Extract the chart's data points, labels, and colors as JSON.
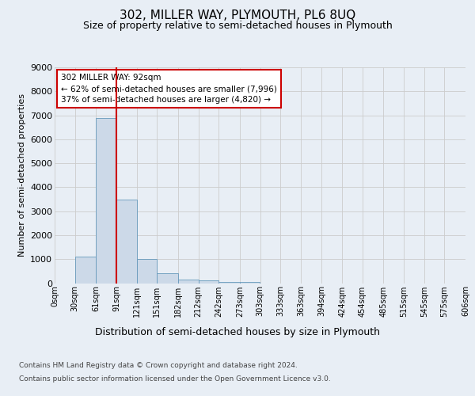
{
  "main_title": "302, MILLER WAY, PLYMOUTH, PL6 8UQ",
  "subtitle": "Size of property relative to semi-detached houses in Plymouth",
  "xlabel": "Distribution of semi-detached houses by size in Plymouth",
  "ylabel": "Number of semi-detached properties",
  "footer_line1": "Contains HM Land Registry data © Crown copyright and database right 2024.",
  "footer_line2": "Contains public sector information licensed under the Open Government Licence v3.0.",
  "annotation_line1": "302 MILLER WAY: 92sqm",
  "annotation_line2": "← 62% of semi-detached houses are smaller (7,996)",
  "annotation_line3": "37% of semi-detached houses are larger (4,820) →",
  "bar_left_edges": [
    0,
    30,
    61,
    91,
    121,
    151,
    182,
    212,
    242,
    273,
    303,
    333,
    363,
    394,
    424,
    454,
    485,
    515,
    545,
    575
  ],
  "bar_heights": [
    0,
    1100,
    6900,
    3500,
    1000,
    400,
    150,
    100,
    60,
    50,
    0,
    0,
    0,
    0,
    0,
    0,
    0,
    0,
    0,
    0
  ],
  "bar_widths": [
    30,
    31,
    30,
    30,
    30,
    31,
    30,
    30,
    31,
    30,
    30,
    30,
    31,
    30,
    30,
    31,
    30,
    30,
    30,
    31
  ],
  "bar_color": "#ccd9e8",
  "bar_edge_color": "#6699bb",
  "vline_color": "#cc0000",
  "vline_x": 91,
  "ylim": [
    0,
    9000
  ],
  "yticks": [
    0,
    1000,
    2000,
    3000,
    4000,
    5000,
    6000,
    7000,
    8000,
    9000
  ],
  "xtick_positions": [
    0,
    30,
    61,
    91,
    121,
    151,
    182,
    212,
    242,
    273,
    303,
    333,
    363,
    394,
    424,
    454,
    485,
    515,
    545,
    575,
    606
  ],
  "xtick_labels": [
    "0sqm",
    "30sqm",
    "61sqm",
    "91sqm",
    "121sqm",
    "151sqm",
    "182sqm",
    "212sqm",
    "242sqm",
    "273sqm",
    "303sqm",
    "333sqm",
    "363sqm",
    "394sqm",
    "424sqm",
    "454sqm",
    "485sqm",
    "515sqm",
    "545sqm",
    "575sqm",
    "606sqm"
  ],
  "xlim": [
    0,
    606
  ],
  "grid_color": "#cccccc",
  "background_color": "#e8eef5",
  "annotation_box_color": "#ffffff",
  "annotation_box_edge": "#cc0000",
  "title_fontsize": 11,
  "subtitle_fontsize": 9,
  "ylabel_fontsize": 8,
  "xlabel_fontsize": 9,
  "tick_fontsize": 7,
  "ytick_fontsize": 8,
  "annotation_fontsize": 7.5,
  "footer_fontsize": 6.5
}
